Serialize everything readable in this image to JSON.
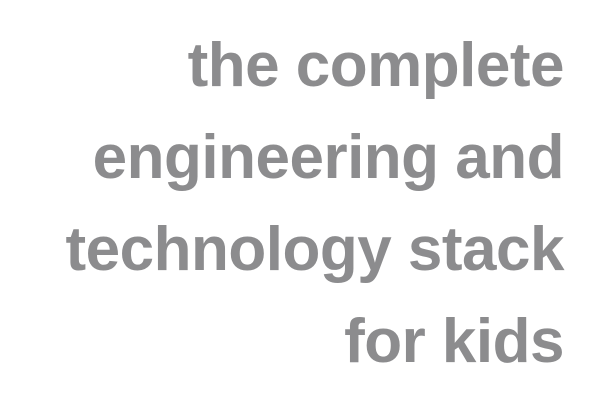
{
  "headline": {
    "color": "#8c8c8e",
    "lines": [
      "the complete",
      "engineering and",
      "technology stack",
      "for kids"
    ]
  }
}
